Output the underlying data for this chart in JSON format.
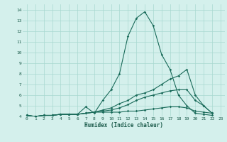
{
  "title": "",
  "xlabel": "Humidex (Indice chaleur)",
  "bg_color": "#d4f0ec",
  "grid_color": "#a8d8d0",
  "line_color": "#1a6b5a",
  "xlim": [
    -0.5,
    23.5
  ],
  "ylim": [
    4,
    14.5
  ],
  "xticks": [
    0,
    1,
    2,
    3,
    4,
    5,
    6,
    7,
    8,
    9,
    10,
    11,
    12,
    13,
    14,
    15,
    16,
    17,
    18,
    19,
    20,
    21,
    22,
    23
  ],
  "yticks": [
    4,
    5,
    6,
    7,
    8,
    9,
    10,
    11,
    12,
    13,
    14
  ],
  "series": [
    {
      "x": [
        0,
        1,
        2,
        3,
        4,
        5,
        6,
        7,
        8,
        9,
        10,
        11,
        12,
        13,
        14,
        15,
        16,
        17,
        18,
        19,
        20,
        21,
        22
      ],
      "y": [
        4.1,
        4.0,
        4.1,
        4.1,
        4.2,
        4.2,
        4.2,
        4.9,
        4.3,
        5.5,
        6.5,
        8.0,
        11.5,
        13.2,
        13.8,
        12.5,
        9.8,
        8.4,
        6.0,
        5.0,
        4.3,
        4.2,
        4.1
      ]
    },
    {
      "x": [
        0,
        1,
        2,
        3,
        4,
        5,
        6,
        7,
        8,
        9,
        10,
        11,
        12,
        13,
        14,
        15,
        16,
        17,
        18,
        19,
        20,
        21,
        22
      ],
      "y": [
        4.1,
        4.0,
        4.1,
        4.1,
        4.2,
        4.2,
        4.2,
        4.3,
        4.4,
        4.6,
        4.8,
        5.2,
        5.5,
        6.0,
        6.2,
        6.5,
        7.0,
        7.5,
        7.8,
        8.4,
        6.0,
        5.0,
        4.3
      ]
    },
    {
      "x": [
        0,
        1,
        2,
        3,
        4,
        5,
        6,
        7,
        8,
        9,
        10,
        11,
        12,
        13,
        14,
        15,
        16,
        17,
        18,
        19,
        20,
        21,
        22
      ],
      "y": [
        4.1,
        4.0,
        4.1,
        4.1,
        4.2,
        4.2,
        4.2,
        4.3,
        4.4,
        4.5,
        4.6,
        4.8,
        5.1,
        5.5,
        5.8,
        6.0,
        6.2,
        6.4,
        6.5,
        6.5,
        5.5,
        5.0,
        4.3
      ]
    },
    {
      "x": [
        0,
        1,
        2,
        3,
        4,
        5,
        6,
        7,
        8,
        9,
        10,
        11,
        12,
        13,
        14,
        15,
        16,
        17,
        18,
        19,
        20,
        21,
        22
      ],
      "y": [
        4.1,
        4.0,
        4.1,
        4.1,
        4.2,
        4.2,
        4.2,
        4.3,
        4.4,
        4.4,
        4.4,
        4.4,
        4.5,
        4.5,
        4.6,
        4.7,
        4.8,
        4.9,
        4.9,
        4.8,
        4.5,
        4.4,
        4.3
      ]
    }
  ]
}
